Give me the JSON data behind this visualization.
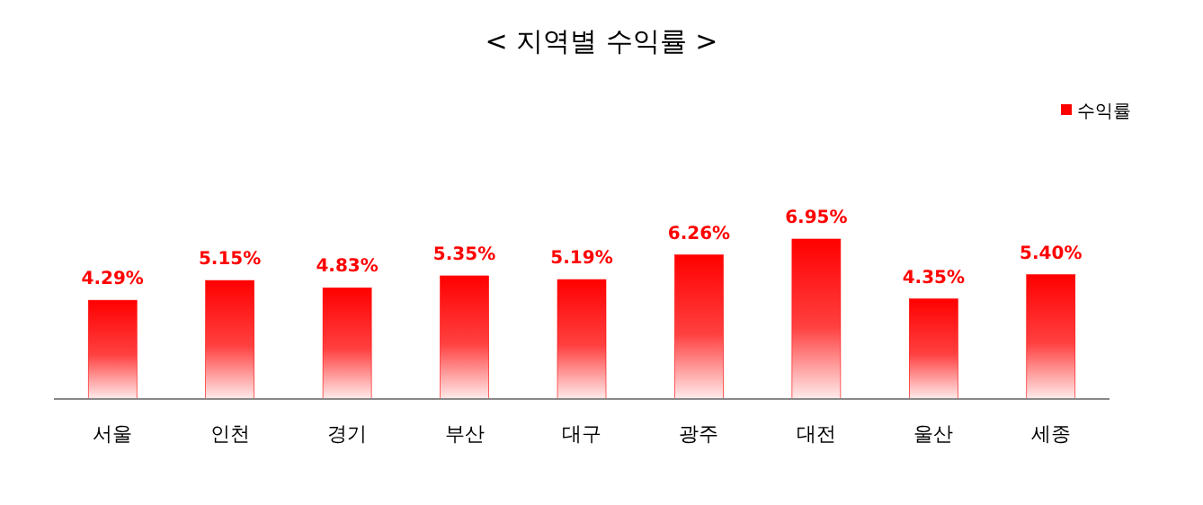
{
  "chart_data": {
    "type": "bar",
    "title": "< 지역별 수익률 >",
    "categories": [
      "서울",
      "인천",
      "경기",
      "부산",
      "대구",
      "광주",
      "대전",
      "울산",
      "세종"
    ],
    "series": [
      {
        "name": "수익률",
        "color": "#ff0000",
        "values": [
          4.29,
          5.15,
          4.83,
          5.35,
          5.19,
          6.26,
          6.95,
          4.35,
          5.4
        ],
        "value_labels": [
          "4.29%",
          "5.15%",
          "4.83%",
          "5.35%",
          "5.19%",
          "6.26%",
          "6.95%",
          "4.35%",
          "5.40%"
        ]
      }
    ],
    "legend": "top right"
  }
}
